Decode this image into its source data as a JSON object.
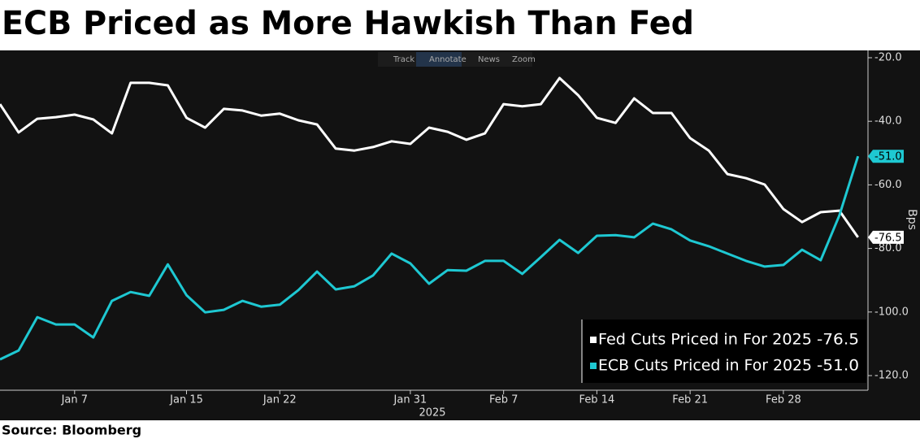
{
  "chart_data": {
    "type": "line",
    "title": "ECB Priced as More Hawkish Than Fed",
    "toolbar": [
      "Track",
      "Annotate",
      "News",
      "Zoom"
    ],
    "ylabel": "Bps",
    "xlabel": "2025",
    "source": "Source: Bloomberg",
    "categories": [
      null,
      null,
      null,
      null,
      "Jan 7",
      null,
      null,
      null,
      null,
      null,
      "Jan 15",
      null,
      null,
      null,
      null,
      "Jan 22",
      null,
      null,
      null,
      null,
      null,
      null,
      "Jan 31",
      null,
      null,
      null,
      null,
      "Feb 7",
      null,
      null,
      null,
      null,
      "Feb 14",
      null,
      null,
      null,
      null,
      "Feb 21",
      null,
      null,
      null,
      null,
      "Feb 28",
      null,
      null,
      null,
      null
    ],
    "series": [
      {
        "name": "Fed Cuts Priced in For 2025",
        "color": "#ffffff",
        "values": [
          -34.6,
          -43.5,
          -39.2,
          -38.7,
          -37.9,
          -39.4,
          -43.8,
          -27.9,
          -27.9,
          -28.7,
          -38.9,
          -42.0,
          -36.1,
          -36.6,
          -38.2,
          -37.6,
          -39.7,
          -41.0,
          -48.6,
          -49.2,
          -48.1,
          -46.3,
          -47.1,
          -42.0,
          -43.3,
          -45.8,
          -43.8,
          -34.6,
          -35.3,
          -34.6,
          -26.4,
          -31.8,
          -38.9,
          -40.5,
          -32.8,
          -37.4,
          -37.4,
          -45.3,
          -49.2,
          -56.6,
          -57.9,
          -59.9,
          -67.6,
          -71.7,
          -68.6,
          -68.1,
          -76.5
        ]
      },
      {
        "name": "ECB Cuts Priced in For 2025",
        "color": "#1ec8d2",
        "values": [
          -114.9,
          -112.1,
          -101.6,
          -103.9,
          -103.9,
          -108.0,
          -96.5,
          -93.7,
          -94.9,
          -85.0,
          -94.7,
          -100.1,
          -99.3,
          -96.5,
          -98.3,
          -97.7,
          -93.1,
          -87.3,
          -92.9,
          -91.9,
          -88.5,
          -81.6,
          -84.7,
          -91.1,
          -86.8,
          -87.0,
          -83.9,
          -83.9,
          -88.0,
          -82.7,
          -77.3,
          -81.4,
          -76.0,
          -75.8,
          -76.5,
          -72.2,
          -74.0,
          -77.5,
          -79.3,
          -81.6,
          -83.9,
          -85.7,
          -85.2,
          -80.4,
          -83.7,
          -69.6,
          -51.0
        ],
        "value_labels": [
          null,
          null,
          null,
          null,
          null,
          null,
          null,
          null,
          null,
          null,
          null,
          null,
          null,
          null,
          null,
          null,
          null,
          null,
          null,
          null,
          null,
          null,
          null,
          null,
          null,
          null,
          null,
          null,
          null,
          null,
          null,
          null,
          null,
          null,
          null,
          null,
          null,
          null,
          null,
          null,
          null,
          null,
          null,
          null,
          null,
          null,
          "-51.0"
        ]
      }
    ],
    "ylim": [
      -124.6,
      -17.7
    ],
    "yticks": [
      {
        "value": -20,
        "label": "-20.0"
      },
      {
        "value": -40,
        "label": "-40.0"
      },
      {
        "value": -60,
        "label": "-60.0"
      },
      {
        "value": -80,
        "label": "-80.0"
      },
      {
        "value": -100,
        "label": "-100.0"
      },
      {
        "value": -120,
        "label": "-120.0"
      }
    ],
    "grid": false,
    "legend": "lower right"
  }
}
